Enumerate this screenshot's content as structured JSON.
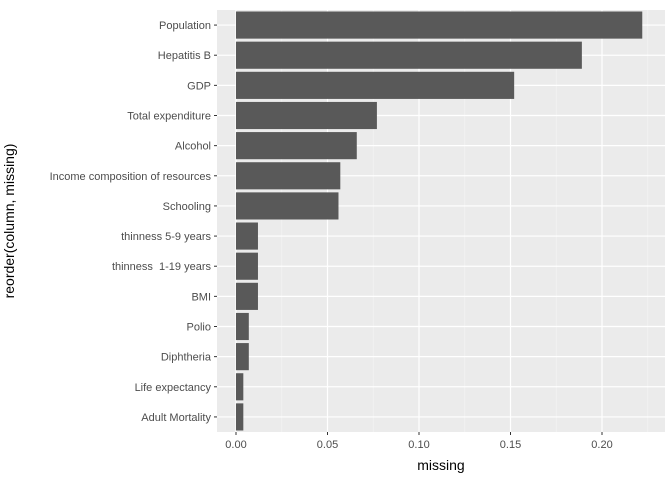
{
  "chart_data": {
    "type": "bar",
    "orientation": "horizontal",
    "xlabel": "missing",
    "ylabel": "reorder(column, missing)",
    "xlim": [
      0,
      0.23
    ],
    "x_ticks": [
      0.0,
      0.05,
      0.1,
      0.15,
      0.2
    ],
    "x_tick_labels": [
      "0.00",
      "0.05",
      "0.10",
      "0.15",
      "0.20"
    ],
    "grid": true,
    "categories": [
      "Population",
      "Hepatitis B",
      "GDP",
      "Total expenditure",
      "Alcohol",
      "Income composition of resources",
      "Schooling",
      "thinness 5-9 years",
      "thinness  1-19 years",
      "BMI",
      "Polio",
      "Diphtheria",
      "Life expectancy",
      "Adult Mortality"
    ],
    "values": [
      0.222,
      0.189,
      0.152,
      0.077,
      0.066,
      0.057,
      0.056,
      0.012,
      0.012,
      0.012,
      0.007,
      0.007,
      0.004,
      0.004
    ],
    "colors": {
      "bar": "#595959",
      "panel": "#ebebeb",
      "grid_major": "#ffffff",
      "grid_minor": "#f5f5f5"
    }
  }
}
